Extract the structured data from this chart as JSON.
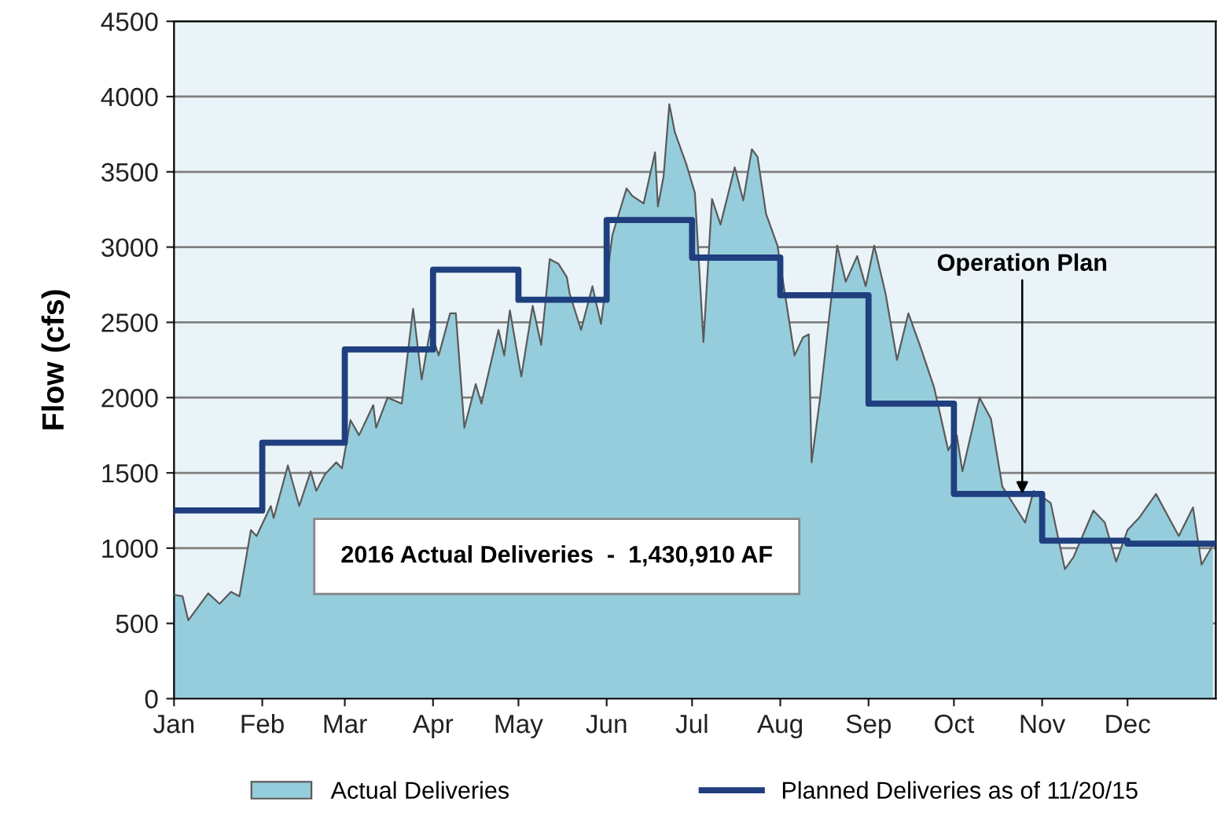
{
  "chart_data": {
    "type": "area",
    "ylabel": "Flow (cfs)",
    "xlim": [
      "2016-01-01",
      "2017-01-01"
    ],
    "xticks": [
      {
        "value": "2016-01-01",
        "label": "Jan"
      },
      {
        "value": "2016-02-01",
        "label": "Feb"
      },
      {
        "value": "2016-03-01",
        "label": "Mar"
      },
      {
        "value": "2016-04-01",
        "label": "Apr"
      },
      {
        "value": "2016-05-01",
        "label": "May"
      },
      {
        "value": "2016-06-01",
        "label": "Jun"
      },
      {
        "value": "2016-07-01",
        "label": "Jul"
      },
      {
        "value": "2016-08-01",
        "label": "Aug"
      },
      {
        "value": "2016-09-01",
        "label": "Sep"
      },
      {
        "value": "2016-10-01",
        "label": "Oct"
      },
      {
        "value": "2016-11-01",
        "label": "Nov"
      },
      {
        "value": "2016-12-01",
        "label": "Dec"
      }
    ],
    "ylim": [
      0,
      4500
    ],
    "yticks": [
      0,
      500,
      1000,
      1500,
      2000,
      2500,
      3000,
      3500,
      4000,
      4500
    ],
    "grid": "y",
    "legend": "bottom",
    "annotations": [
      "2016 Actual Deliveries  -  1,430,910 AF",
      {
        "text": "Operation Plan",
        "x": "2016-10-25",
        "y": 1360
      }
    ],
    "series": [
      {
        "name": "Actual Deliveries",
        "color": "#96cddc",
        "x": [
          "2016-01-01",
          "2016-01-04",
          "2016-01-06",
          "2016-01-13",
          "2016-01-17",
          "2016-01-21",
          "2016-01-24",
          "2016-01-28",
          "2016-01-30",
          "2016-02-04",
          "2016-02-05",
          "2016-02-10",
          "2016-02-14",
          "2016-02-18",
          "2016-02-20",
          "2016-02-23",
          "2016-02-27",
          "2016-02-29",
          "2016-03-03",
          "2016-03-06",
          "2016-03-11",
          "2016-03-12",
          "2016-03-16",
          "2016-03-21",
          "2016-03-25",
          "2016-03-28",
          "2016-03-31",
          "2016-04-03",
          "2016-04-07",
          "2016-04-09",
          "2016-04-12",
          "2016-04-16",
          "2016-04-18",
          "2016-04-24",
          "2016-04-26",
          "2016-04-28",
          "2016-05-02",
          "2016-05-06",
          "2016-05-09",
          "2016-05-12",
          "2016-05-15",
          "2016-05-18",
          "2016-05-19",
          "2016-05-23",
          "2016-05-27",
          "2016-05-30",
          "2016-06-03",
          "2016-06-08",
          "2016-06-10",
          "2016-06-14",
          "2016-06-18",
          "2016-06-19",
          "2016-06-21",
          "2016-06-23",
          "2016-06-25",
          "2016-06-29",
          "2016-07-02",
          "2016-07-05",
          "2016-07-08",
          "2016-07-11",
          "2016-07-16",
          "2016-07-19",
          "2016-07-22",
          "2016-07-24",
          "2016-07-27",
          "2016-07-31",
          "2016-08-06",
          "2016-08-09",
          "2016-08-11",
          "2016-08-12",
          "2016-08-15",
          "2016-08-21",
          "2016-08-24",
          "2016-08-28",
          "2016-08-31",
          "2016-09-03",
          "2016-09-07",
          "2016-09-11",
          "2016-09-15",
          "2016-09-19",
          "2016-09-24",
          "2016-09-29",
          "2016-10-02",
          "2016-10-04",
          "2016-10-10",
          "2016-10-14",
          "2016-10-18",
          "2016-10-26",
          "2016-10-29",
          "2016-11-04",
          "2016-11-09",
          "2016-11-12",
          "2016-11-19",
          "2016-11-23",
          "2016-11-27",
          "2016-12-01",
          "2016-12-05",
          "2016-12-11",
          "2016-12-15",
          "2016-12-19",
          "2016-12-24",
          "2016-12-27",
          "2016-12-31"
        ],
        "values": [
          690,
          680,
          520,
          700,
          630,
          710,
          680,
          1120,
          1080,
          1280,
          1200,
          1550,
          1280,
          1510,
          1380,
          1490,
          1570,
          1530,
          1850,
          1750,
          1950,
          1800,
          2000,
          1960,
          2590,
          2120,
          2450,
          2280,
          2560,
          2560,
          1800,
          2090,
          1960,
          2450,
          2280,
          2580,
          2140,
          2610,
          2350,
          2920,
          2890,
          2800,
          2690,
          2450,
          2740,
          2490,
          3080,
          3390,
          3340,
          3290,
          3630,
          3270,
          3470,
          3950,
          3760,
          3550,
          3360,
          2370,
          3320,
          3150,
          3530,
          3310,
          3650,
          3600,
          3220,
          3010,
          2280,
          2400,
          2420,
          1570,
          2000,
          3010,
          2770,
          2940,
          2740,
          3010,
          2690,
          2250,
          2560,
          2350,
          2070,
          1650,
          1750,
          1510,
          2000,
          1860,
          1410,
          1170,
          1380,
          1300,
          860,
          940,
          1250,
          1170,
          910,
          1120,
          1200,
          1360,
          1220,
          1080,
          1270,
          890,
          1020
        ]
      },
      {
        "name": "Planned Deliveries as of 11/20/15",
        "type": "step",
        "color": "#1f3f7f",
        "x": [
          "2016-01-01",
          "2016-02-01",
          "2016-03-01",
          "2016-04-01",
          "2016-05-01",
          "2016-06-01",
          "2016-07-01",
          "2016-08-01",
          "2016-09-01",
          "2016-10-01",
          "2016-11-01",
          "2016-12-01",
          "2017-01-01"
        ],
        "values": [
          1250,
          1700,
          2320,
          2850,
          2650,
          3180,
          2930,
          2680,
          1960,
          1360,
          1050,
          1030,
          1030
        ]
      }
    ]
  }
}
